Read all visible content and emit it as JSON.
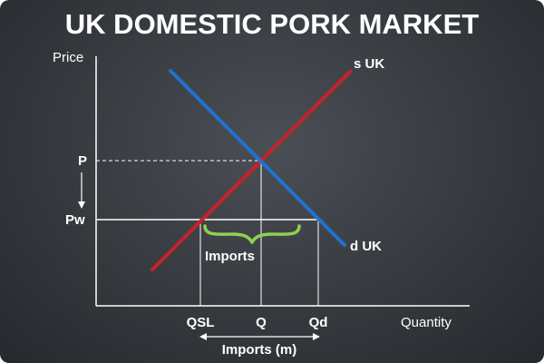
{
  "title": "UK DOMESTIC PORK MARKET",
  "axes": {
    "y_label": "Price",
    "x_label": "Quantity"
  },
  "curves": {
    "supply_label": "s UK",
    "demand_label": "d UK"
  },
  "price_levels": {
    "domestic": "P",
    "world": "Pw"
  },
  "quantity_levels": {
    "supply_at_world_price": "QSL",
    "equilibrium": "Q",
    "demand_at_world_price": "Qd"
  },
  "annotations": {
    "imports_brace": "Imports",
    "imports_range": "Imports (m)"
  },
  "colors": {
    "supply": "#c8212b",
    "demand": "#1e73d2",
    "brace": "#8fd14f",
    "lines": "#ffffff"
  }
}
